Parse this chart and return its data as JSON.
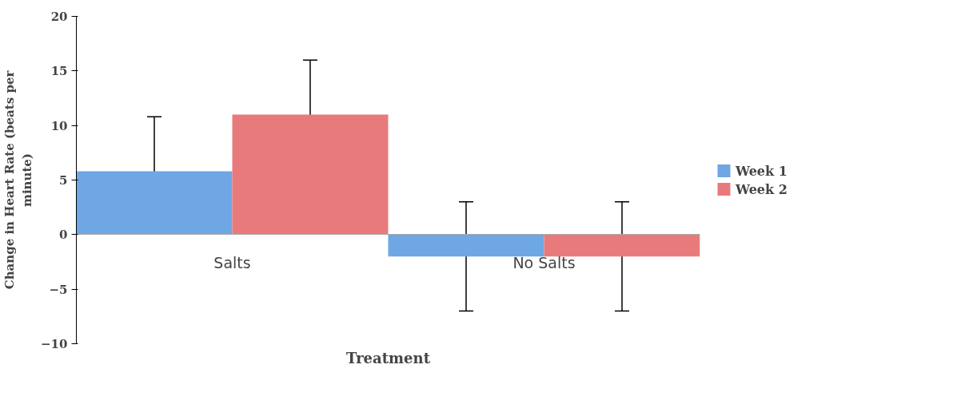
{
  "chart_data": {
    "type": "bar",
    "categories": [
      "Salts",
      "No Salts"
    ],
    "xlabel": "Treatment",
    "ylabel": "Change in Heart Rate (beats per minute)",
    "series": [
      {
        "name": "Week 1",
        "color": "#6fa6e4",
        "values": [
          5.8,
          -2.0
        ],
        "errors": [
          5,
          5
        ]
      },
      {
        "name": "Week 2",
        "color": "#e97a7c",
        "values": [
          11,
          -2.0
        ],
        "errors": [
          5,
          5
        ]
      }
    ],
    "ylim": [
      -10,
      20
    ],
    "yticks": [
      -10,
      -5,
      0,
      5,
      10,
      15,
      20
    ],
    "grid": false,
    "legend": "right"
  }
}
